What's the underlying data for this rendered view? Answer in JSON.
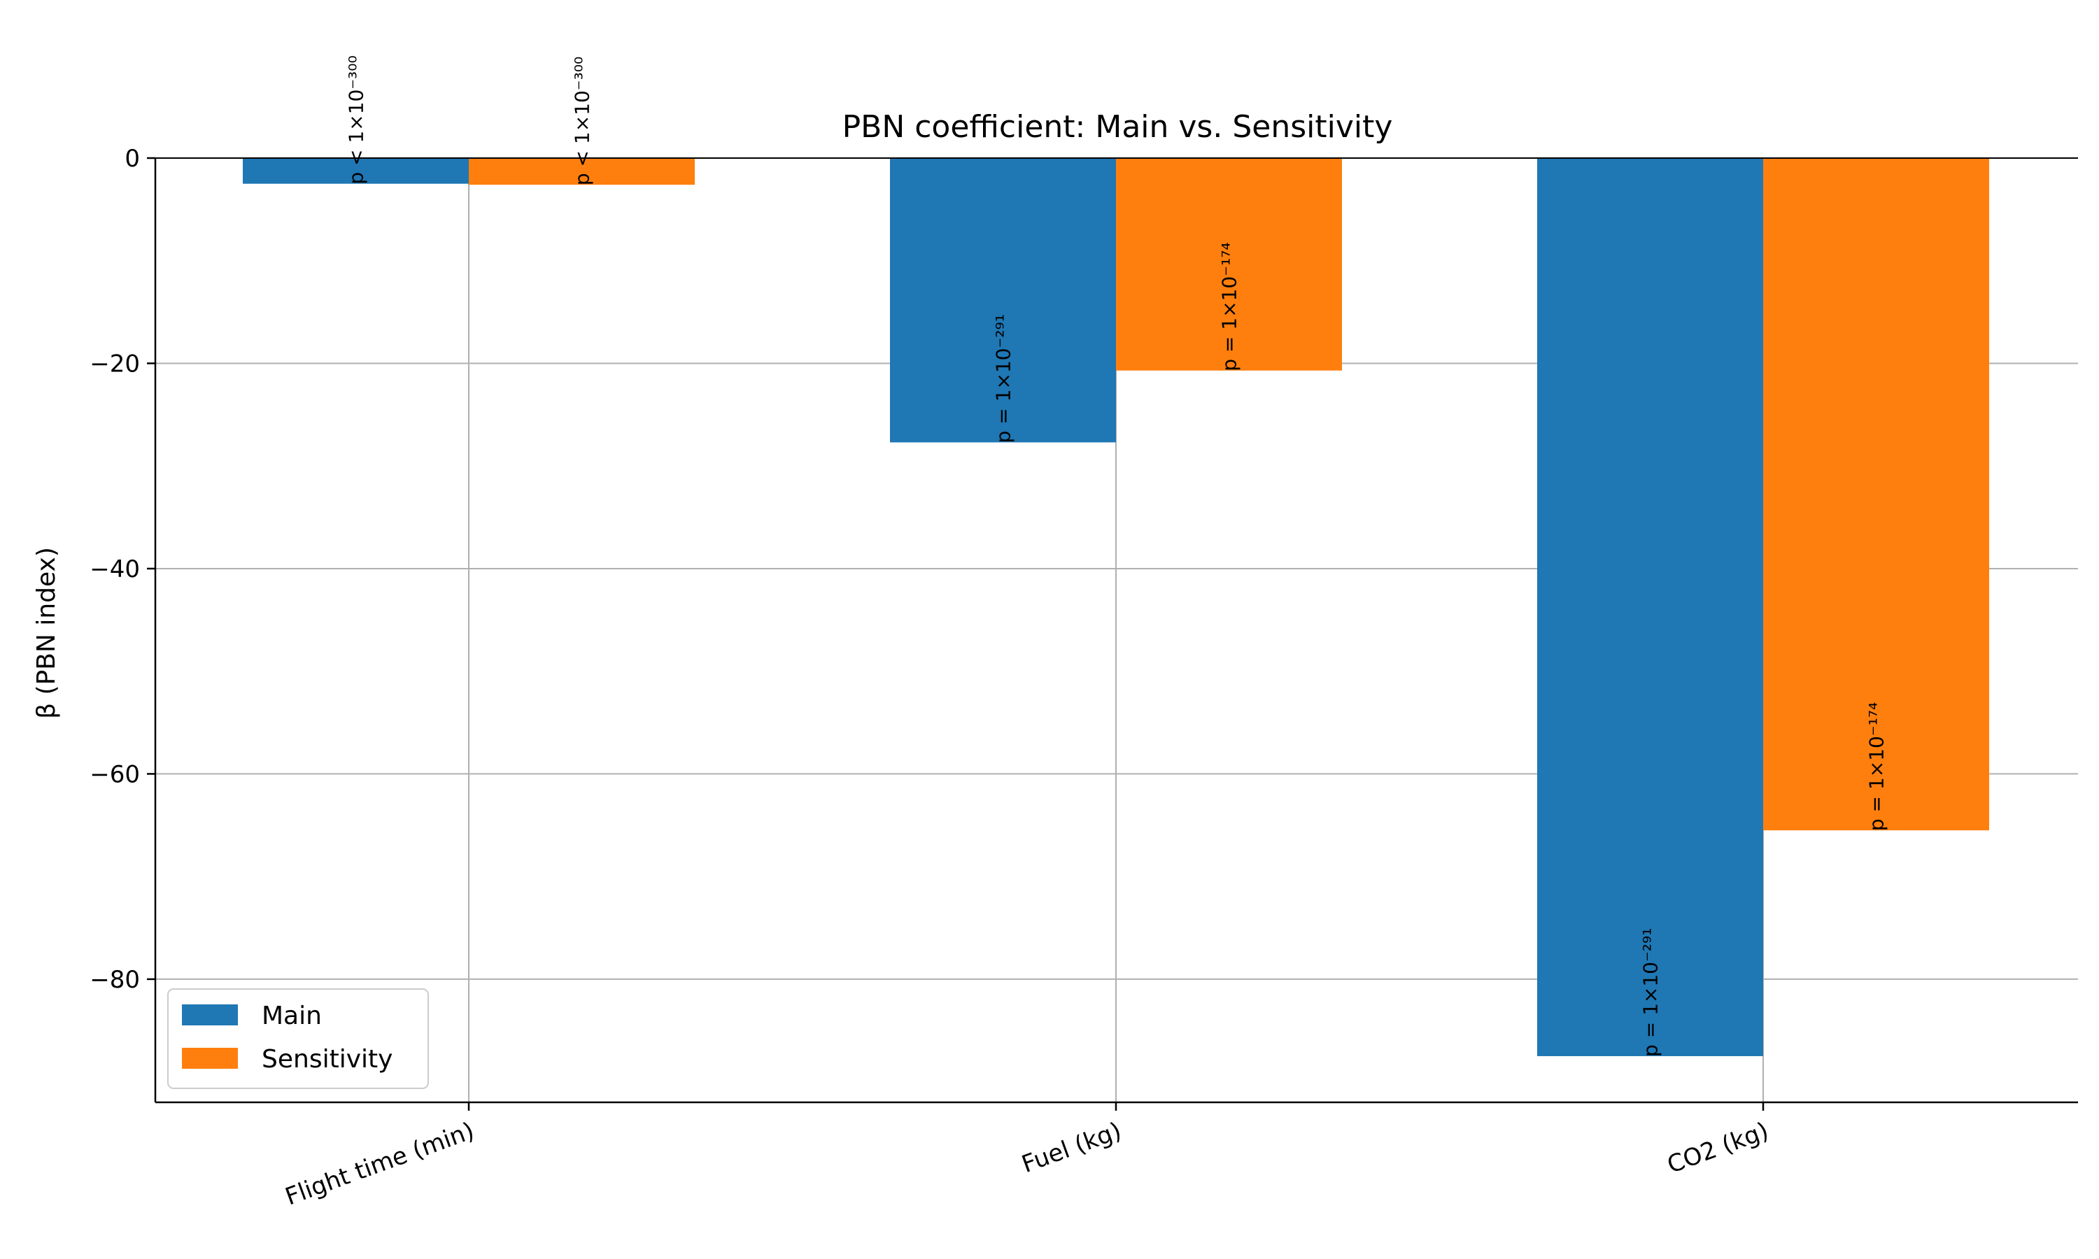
{
  "chart_data": {
    "type": "bar",
    "title": "PBN coefficient: Main vs. Sensitivity",
    "xlabel": "",
    "ylabel": "β (PBN index)",
    "categories": [
      "Flight time (min)",
      "Fuel (kg)",
      "CO2 (kg)"
    ],
    "series": [
      {
        "name": "Main",
        "color": "#1f77b4",
        "values": [
          -2.5,
          -27.7,
          -87.5
        ],
        "labels": [
          "p < 1×10⁻³⁰⁰",
          "p = 1×10⁻²⁹¹",
          "p = 1×10⁻²⁹¹"
        ]
      },
      {
        "name": "Sensitivity",
        "color": "#ff7f0e",
        "values": [
          -2.6,
          -20.7,
          -65.5
        ],
        "labels": [
          "p < 1×10⁻³⁰⁰",
          "p = 1×10⁻¹⁷⁴",
          "p = 1×10⁻¹⁷⁴"
        ]
      }
    ],
    "ylim": [
      -92,
      0
    ],
    "yticks": [
      0,
      -20,
      -40,
      -60,
      -80
    ],
    "ytick_labels": [
      "0",
      "−20",
      "−40",
      "−60",
      "−80"
    ],
    "grid": true,
    "legend_position": "lower-left"
  }
}
